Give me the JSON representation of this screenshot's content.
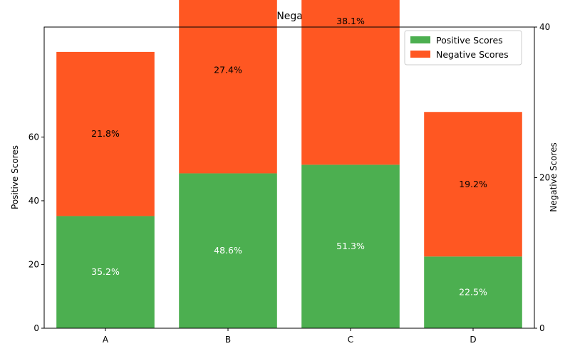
{
  "chart_data": {
    "type": "bar",
    "stacked": true,
    "title": "Positive vs Negative Scores",
    "categories": [
      "A",
      "B",
      "C",
      "D"
    ],
    "series": [
      {
        "name": "Positive Scores",
        "axis": "left",
        "color": "#4caf50",
        "label_color": "#ffffff",
        "values": [
          35.2,
          48.6,
          51.3,
          22.5
        ],
        "labels": [
          "35.2%",
          "48.6%",
          "51.3%",
          "22.5%"
        ]
      },
      {
        "name": "Negative Scores",
        "axis": "right",
        "color": "#ff5722",
        "label_color": "#000000",
        "values": [
          21.8,
          27.4,
          38.1,
          19.2
        ],
        "labels": [
          "21.8%",
          "27.4%",
          "38.1%",
          "19.2%"
        ]
      }
    ],
    "ylabel": "Positive Scores",
    "ylabel_right": "Negative Scores",
    "ylim": [
      0,
      94.5
    ],
    "yticks": [
      0,
      20,
      40,
      60
    ],
    "ylim_right": [
      0,
      40
    ],
    "yticks_right": [
      0,
      20,
      40
    ],
    "grid": false,
    "legend_position": "top-right"
  }
}
